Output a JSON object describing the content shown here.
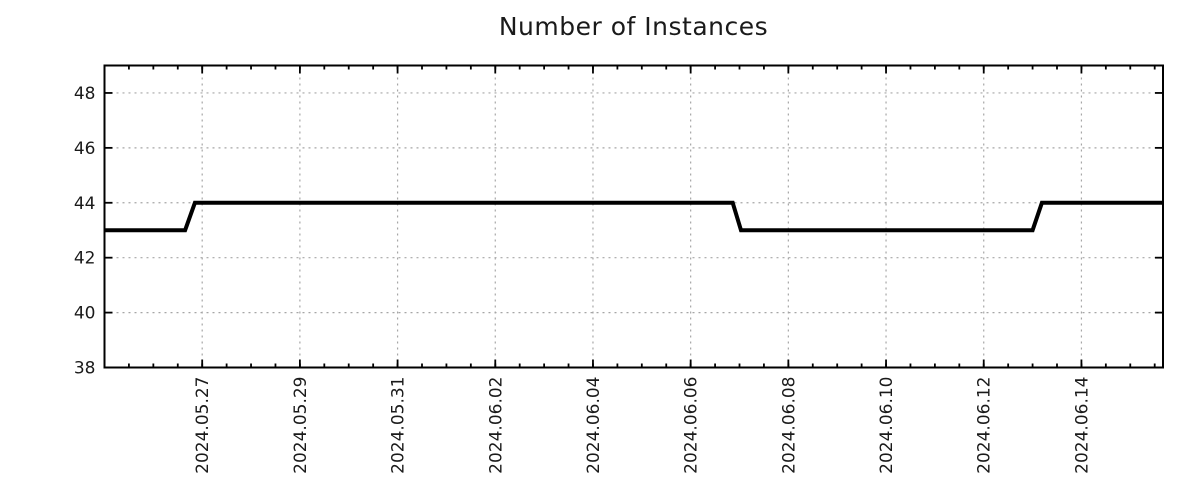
{
  "chart_data": {
    "type": "line",
    "title": "Number of Instances",
    "line_style": "step",
    "line_color": "#000000",
    "grid_color": "#a6a6a6",
    "axis_color": "#000000",
    "legend": "none",
    "grid": "dotted, at major ticks",
    "x_axis": {
      "start_time": "2024-05-25 00:00",
      "end_time": "2024-06-15 16:00",
      "span_days": 21.67,
      "tick_labels": [
        "2024.05.27",
        "2024.05.29",
        "2024.05.31",
        "2024.06.02",
        "2024.06.04",
        "2024.06.06",
        "2024.06.08",
        "2024.06.10",
        "2024.06.12",
        "2024.06.14"
      ],
      "tick_positions_days": [
        2,
        4,
        6,
        8,
        10,
        12,
        14,
        16,
        18,
        20
      ],
      "minor_tick_step_days": 0.5,
      "label_rotation_deg": -90
    },
    "y_axis": {
      "min": 38,
      "max": 49,
      "tick_labels": [
        "38",
        "40",
        "42",
        "44",
        "46",
        "48"
      ],
      "tick_values": [
        38,
        40,
        42,
        44,
        46,
        48
      ]
    },
    "series": [
      {
        "name": "instances",
        "color": "#000000",
        "points": [
          {
            "days": 0,
            "time": "2024-05-25 00:00",
            "value": 43
          },
          {
            "days": 1.65,
            "time": "2024-05-26 15:40",
            "value": 43
          },
          {
            "days": 1.85,
            "time": "2024-05-26 20:20",
            "value": 44
          },
          {
            "days": 12.86,
            "time": "2024-06-06 20:40",
            "value": 44
          },
          {
            "days": 13.03,
            "time": "2024-06-07 00:45",
            "value": 43
          },
          {
            "days": 19.0,
            "time": "2024-06-13 00:00",
            "value": 43
          },
          {
            "days": 19.19,
            "time": "2024-06-13 04:35",
            "value": 44
          },
          {
            "days": 21.67,
            "time": "2024-06-15 16:00",
            "value": 44
          }
        ]
      }
    ]
  }
}
